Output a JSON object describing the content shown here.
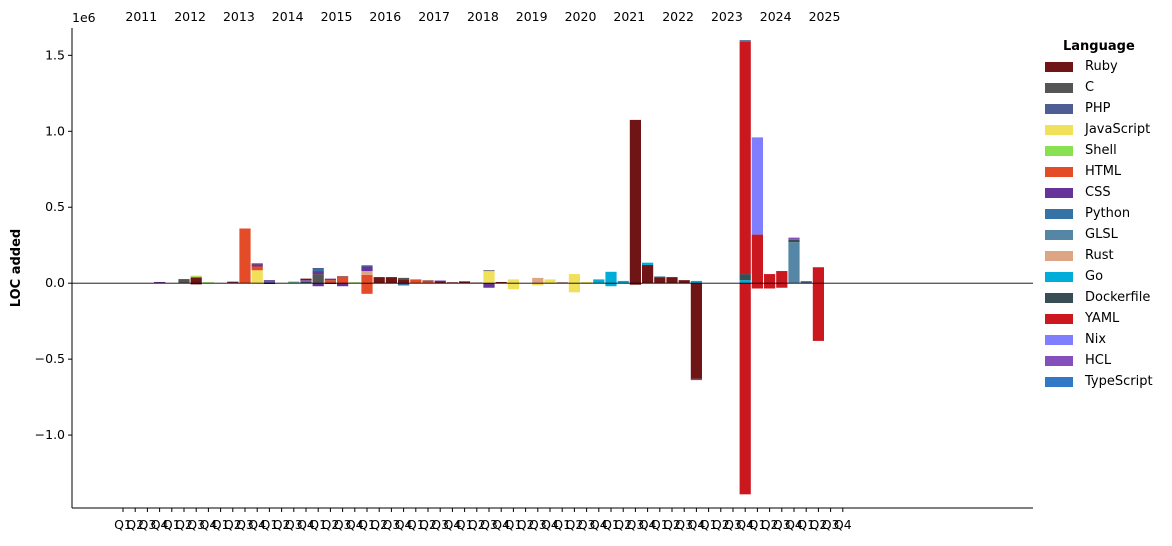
{
  "chart_data": {
    "type": "bar",
    "stacked": true,
    "ylabel": "LOC added",
    "xlabel": "",
    "title": "",
    "y_offset_label": "1e6",
    "y_scale": 1000000,
    "ylim": [
      -1.48,
      1.68
    ],
    "y_ticks": [
      -1.0,
      -0.5,
      0.0,
      0.5,
      1.0,
      1.5
    ],
    "y_tick_labels": [
      "−1.0",
      "−0.5",
      "0.0",
      "0.5",
      "1.0",
      "1.5"
    ],
    "zero_line": true,
    "grid": false,
    "years": [
      "2011",
      "2012",
      "2013",
      "2014",
      "2015",
      "2016",
      "2017",
      "2018",
      "2019",
      "2020",
      "2021",
      "2022",
      "2023",
      "2024",
      "2025"
    ],
    "quarter_labels": [
      "Q1",
      "Q2",
      "Q3",
      "Q4"
    ],
    "legend": {
      "title": "Language",
      "placement": "outside-right",
      "entries": [
        {
          "name": "Ruby",
          "color": "#701516"
        },
        {
          "name": "C",
          "color": "#555555"
        },
        {
          "name": "PHP",
          "color": "#4F5D95"
        },
        {
          "name": "JavaScript",
          "color": "#f1e05a"
        },
        {
          "name": "Shell",
          "color": "#89e051"
        },
        {
          "name": "HTML",
          "color": "#e34c26"
        },
        {
          "name": "CSS",
          "color": "#663399"
        },
        {
          "name": "Python",
          "color": "#3572A5"
        },
        {
          "name": "GLSL",
          "color": "#5686a5"
        },
        {
          "name": "Rust",
          "color": "#dea584"
        },
        {
          "name": "Go",
          "color": "#00ADD8"
        },
        {
          "name": "Dockerfile",
          "color": "#384d54"
        },
        {
          "name": "YAML",
          "color": "#cb171e"
        },
        {
          "name": "Nix",
          "color": "#7e7eff"
        },
        {
          "name": "HCL",
          "color": "#844FBA"
        },
        {
          "name": "TypeScript",
          "color": "#3178c6"
        }
      ]
    },
    "bars": [
      {
        "year": "2011",
        "quarter": 4,
        "segments": [
          {
            "lang": "Ruby",
            "value": 0.006
          },
          {
            "lang": "CSS",
            "value": 0.002
          }
        ]
      },
      {
        "year": "2012",
        "quarter": 2,
        "segments": [
          {
            "lang": "C",
            "value": 0.022
          },
          {
            "lang": "Ruby",
            "value": 0.004
          }
        ]
      },
      {
        "year": "2012",
        "quarter": 3,
        "segments": [
          {
            "lang": "Ruby",
            "value": 0.038
          },
          {
            "lang": "Shell",
            "value": 0.008
          },
          {
            "lang": "JavaScript",
            "value": 0.004
          },
          {
            "lang": "Ruby",
            "value": -0.008
          }
        ]
      },
      {
        "year": "2012",
        "quarter": 4,
        "segments": [
          {
            "lang": "JavaScript",
            "value": 0.004
          },
          {
            "lang": "Shell",
            "value": 0.002
          }
        ]
      },
      {
        "year": "2013",
        "quarter": 2,
        "segments": [
          {
            "lang": "CSS",
            "value": 0.006
          },
          {
            "lang": "Ruby",
            "value": 0.004
          }
        ]
      },
      {
        "year": "2013",
        "quarter": 3,
        "segments": [
          {
            "lang": "HTML",
            "value": 0.36
          }
        ]
      },
      {
        "year": "2013",
        "quarter": 4,
        "segments": [
          {
            "lang": "JavaScript",
            "value": 0.085
          },
          {
            "lang": "HTML",
            "value": 0.025
          },
          {
            "lang": "CSS",
            "value": 0.015
          },
          {
            "lang": "Ruby",
            "value": 0.005
          }
        ]
      },
      {
        "year": "2014",
        "quarter": 1,
        "segments": [
          {
            "lang": "PHP",
            "value": 0.012
          },
          {
            "lang": "CSS",
            "value": 0.008
          },
          {
            "lang": "Ruby",
            "value": -0.004
          }
        ]
      },
      {
        "year": "2014",
        "quarter": 3,
        "segments": [
          {
            "lang": "Shell",
            "value": 0.006
          },
          {
            "lang": "GLSL",
            "value": 0.004
          }
        ]
      },
      {
        "year": "2014",
        "quarter": 4,
        "segments": [
          {
            "lang": "Dockerfile",
            "value": 0.01
          },
          {
            "lang": "HCL",
            "value": 0.01
          },
          {
            "lang": "Ruby",
            "value": 0.01
          }
        ]
      },
      {
        "year": "2015",
        "quarter": 1,
        "segments": [
          {
            "lang": "C",
            "value": 0.06
          },
          {
            "lang": "CSS",
            "value": 0.02
          },
          {
            "lang": "Python",
            "value": 0.01
          },
          {
            "lang": "PHP",
            "value": 0.01
          },
          {
            "lang": "CSS",
            "value": -0.02
          }
        ]
      },
      {
        "year": "2015",
        "quarter": 2,
        "segments": [
          {
            "lang": "HTML",
            "value": 0.02
          },
          {
            "lang": "CSS",
            "value": 0.01
          },
          {
            "lang": "Ruby",
            "value": -0.005
          }
        ]
      },
      {
        "year": "2015",
        "quarter": 3,
        "segments": [
          {
            "lang": "HTML",
            "value": 0.04
          },
          {
            "lang": "Ruby",
            "value": 0.005
          },
          {
            "lang": "CSS",
            "value": -0.02
          }
        ]
      },
      {
        "year": "2015",
        "quarter": 4,
        "segments": [
          {
            "lang": "Shell",
            "value": 0.006
          }
        ]
      },
      {
        "year": "2016",
        "quarter": 1,
        "segments": [
          {
            "lang": "HTML",
            "value": 0.055
          },
          {
            "lang": "Rust",
            "value": 0.025
          },
          {
            "lang": "CSS",
            "value": 0.03
          },
          {
            "lang": "Python",
            "value": 0.008
          },
          {
            "lang": "HTML",
            "value": -0.07
          }
        ]
      },
      {
        "year": "2016",
        "quarter": 2,
        "segments": [
          {
            "lang": "Ruby",
            "value": 0.04
          }
        ]
      },
      {
        "year": "2016",
        "quarter": 3,
        "segments": [
          {
            "lang": "Ruby",
            "value": 0.04
          }
        ]
      },
      {
        "year": "2016",
        "quarter": 4,
        "segments": [
          {
            "lang": "Ruby",
            "value": 0.025
          },
          {
            "lang": "C",
            "value": 0.01
          },
          {
            "lang": "Python",
            "value": -0.015
          }
        ]
      },
      {
        "year": "2017",
        "quarter": 1,
        "segments": [
          {
            "lang": "HTML",
            "value": 0.025
          }
        ]
      },
      {
        "year": "2017",
        "quarter": 2,
        "segments": [
          {
            "lang": "HTML",
            "value": 0.012
          },
          {
            "lang": "Ruby",
            "value": 0.006
          }
        ]
      },
      {
        "year": "2017",
        "quarter": 3,
        "segments": [
          {
            "lang": "Ruby",
            "value": 0.014
          },
          {
            "lang": "HCL",
            "value": 0.004
          }
        ]
      },
      {
        "year": "2017",
        "quarter": 4,
        "segments": [
          {
            "lang": "Ruby",
            "value": 0.006
          }
        ]
      },
      {
        "year": "2018",
        "quarter": 1,
        "segments": [
          {
            "lang": "Ruby",
            "value": 0.012
          }
        ]
      },
      {
        "year": "2018",
        "quarter": 2,
        "segments": [
          {
            "lang": "Ruby",
            "value": 0.004
          }
        ]
      },
      {
        "year": "2018",
        "quarter": 3,
        "segments": [
          {
            "lang": "JavaScript",
            "value": 0.08
          },
          {
            "lang": "C",
            "value": 0.005
          },
          {
            "lang": "CSS",
            "value": -0.03
          }
        ]
      },
      {
        "year": "2018",
        "quarter": 4,
        "segments": [
          {
            "lang": "Ruby",
            "value": 0.008
          }
        ]
      },
      {
        "year": "2019",
        "quarter": 1,
        "segments": [
          {
            "lang": "JavaScript",
            "value": 0.025
          },
          {
            "lang": "JavaScript",
            "value": -0.04
          }
        ]
      },
      {
        "year": "2019",
        "quarter": 3,
        "segments": [
          {
            "lang": "Rust",
            "value": 0.035
          },
          {
            "lang": "JavaScript",
            "value": -0.015
          }
        ]
      },
      {
        "year": "2019",
        "quarter": 4,
        "segments": [
          {
            "lang": "JavaScript",
            "value": 0.025
          }
        ]
      },
      {
        "year": "2020",
        "quarter": 1,
        "segments": [
          {
            "lang": "Ruby",
            "value": 0.005
          }
        ]
      },
      {
        "year": "2020",
        "quarter": 2,
        "segments": [
          {
            "lang": "JavaScript",
            "value": 0.06
          },
          {
            "lang": "JavaScript",
            "value": -0.06
          }
        ]
      },
      {
        "year": "2020",
        "quarter": 3,
        "segments": [
          {
            "lang": "JavaScript",
            "value": 0.008
          }
        ]
      },
      {
        "year": "2020",
        "quarter": 4,
        "segments": [
          {
            "lang": "Go",
            "value": 0.025
          }
        ]
      },
      {
        "year": "2021",
        "quarter": 1,
        "segments": [
          {
            "lang": "Go",
            "value": 0.075
          },
          {
            "lang": "Go",
            "value": -0.02
          }
        ]
      },
      {
        "year": "2021",
        "quarter": 2,
        "segments": [
          {
            "lang": "Go",
            "value": 0.015
          }
        ]
      },
      {
        "year": "2021",
        "quarter": 3,
        "segments": [
          {
            "lang": "Ruby",
            "value": 1.075
          },
          {
            "lang": "Ruby",
            "value": -0.01
          }
        ]
      },
      {
        "year": "2021",
        "quarter": 4,
        "segments": [
          {
            "lang": "Ruby",
            "value": 0.12
          },
          {
            "lang": "Go",
            "value": 0.015
          }
        ]
      },
      {
        "year": "2022",
        "quarter": 1,
        "segments": [
          {
            "lang": "Ruby",
            "value": 0.04
          },
          {
            "lang": "GLSL",
            "value": 0.005
          }
        ]
      },
      {
        "year": "2022",
        "quarter": 2,
        "segments": [
          {
            "lang": "Ruby",
            "value": 0.04
          }
        ]
      },
      {
        "year": "2022",
        "quarter": 3,
        "segments": [
          {
            "lang": "Ruby",
            "value": 0.02
          }
        ]
      },
      {
        "year": "2022",
        "quarter": 4,
        "segments": [
          {
            "lang": "Go",
            "value": 0.015
          },
          {
            "lang": "Ruby",
            "value": -0.63
          },
          {
            "lang": "PHP",
            "value": -0.008
          }
        ]
      },
      {
        "year": "2023",
        "quarter": 4,
        "segments": [
          {
            "lang": "Go",
            "value": 0.02
          },
          {
            "lang": "Dockerfile",
            "value": 0.04
          },
          {
            "lang": "YAML",
            "value": 1.53
          },
          {
            "lang": "PHP",
            "value": 0.01
          },
          {
            "lang": "YAML",
            "value": -1.39
          }
        ]
      },
      {
        "year": "2024",
        "quarter": 1,
        "segments": [
          {
            "lang": "YAML",
            "value": 0.32
          },
          {
            "lang": "Nix",
            "value": 0.64
          },
          {
            "lang": "YAML",
            "value": -0.035
          }
        ]
      },
      {
        "year": "2024",
        "quarter": 2,
        "segments": [
          {
            "lang": "YAML",
            "value": 0.06
          },
          {
            "lang": "YAML",
            "value": -0.035
          }
        ]
      },
      {
        "year": "2024",
        "quarter": 3,
        "segments": [
          {
            "lang": "YAML",
            "value": 0.08
          },
          {
            "lang": "YAML",
            "value": -0.03
          }
        ]
      },
      {
        "year": "2024",
        "quarter": 4,
        "segments": [
          {
            "lang": "GLSL",
            "value": 0.27
          },
          {
            "lang": "Dockerfile",
            "value": 0.015
          },
          {
            "lang": "HCL",
            "value": 0.015
          }
        ]
      },
      {
        "year": "2025",
        "quarter": 1,
        "segments": [
          {
            "lang": "PHP",
            "value": 0.008
          },
          {
            "lang": "TypeScript",
            "value": 0.006
          }
        ]
      },
      {
        "year": "2025",
        "quarter": 2,
        "segments": [
          {
            "lang": "YAML",
            "value": 0.105
          },
          {
            "lang": "YAML",
            "value": -0.38
          }
        ]
      }
    ]
  }
}
